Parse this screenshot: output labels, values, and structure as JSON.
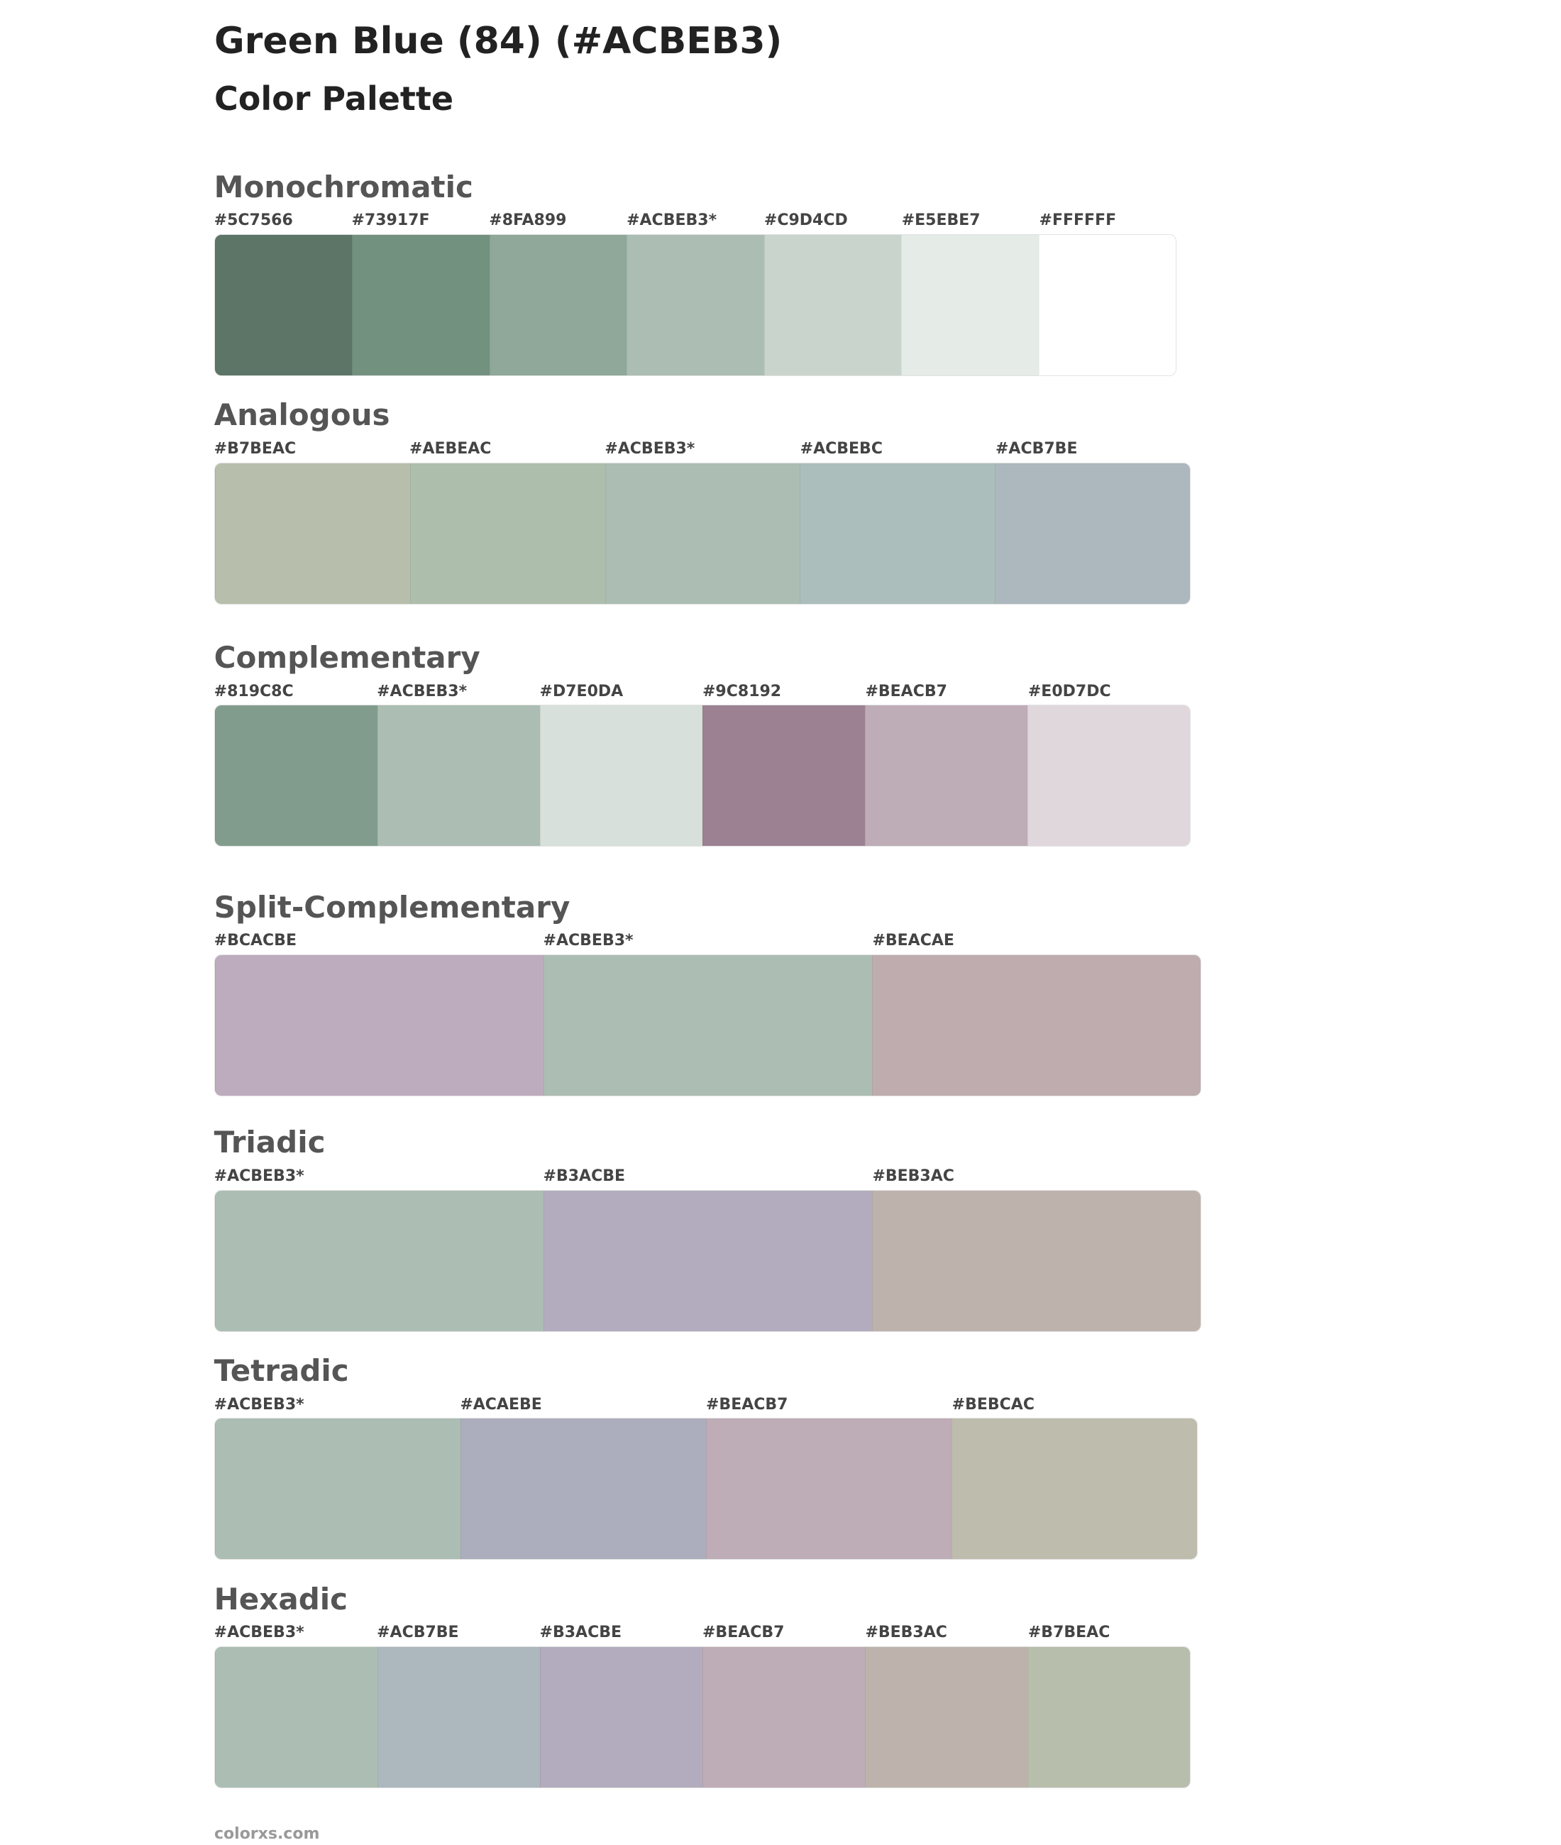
{
  "header": {
    "title": "Green Blue (84) (#ACBEB3)",
    "subtitle": "Color Palette"
  },
  "sections": [
    {
      "name": "Monochromatic",
      "swatches": [
        {
          "label": "#5C7566",
          "color": "#5C7566"
        },
        {
          "label": "#73917F",
          "color": "#73917F"
        },
        {
          "label": "#8FA899",
          "color": "#8FA899"
        },
        {
          "label": "#ACBEB3*",
          "color": "#ACBEB3"
        },
        {
          "label": "#C9D4CD",
          "color": "#C9D4CD"
        },
        {
          "label": "#E5EBE7",
          "color": "#E5EBE7"
        },
        {
          "label": "#FFFFFF",
          "color": "#FFFFFF"
        }
      ]
    },
    {
      "name": "Analogous",
      "swatches": [
        {
          "label": "#B7BEAC",
          "color": "#B7BEAC"
        },
        {
          "label": "#AEBEAC",
          "color": "#AEBEAC"
        },
        {
          "label": "#ACBEB3*",
          "color": "#ACBEB3"
        },
        {
          "label": "#ACBEBC",
          "color": "#ACBEBC"
        },
        {
          "label": "#ACB7BE",
          "color": "#ACB7BE"
        }
      ]
    },
    {
      "name": "Complementary",
      "swatches": [
        {
          "label": "#819C8C",
          "color": "#819C8C"
        },
        {
          "label": "#ACBEB3*",
          "color": "#ACBEB3"
        },
        {
          "label": "#D7E0DA",
          "color": "#D7E0DA"
        },
        {
          "label": "#9C8192",
          "color": "#9C8192"
        },
        {
          "label": "#BEACB7",
          "color": "#BEACB7"
        },
        {
          "label": "#E0D7DC",
          "color": "#E0D7DC"
        }
      ]
    },
    {
      "name": "Split-Complementary",
      "swatches": [
        {
          "label": "#BCACBE",
          "color": "#BCACBE"
        },
        {
          "label": "#ACBEB3*",
          "color": "#ACBEB3"
        },
        {
          "label": "#BEACAE",
          "color": "#BEACAE"
        }
      ]
    },
    {
      "name": "Triadic",
      "swatches": [
        {
          "label": "#ACBEB3*",
          "color": "#ACBEB3"
        },
        {
          "label": "#B3ACBE",
          "color": "#B3ACBE"
        },
        {
          "label": "#BEB3AC",
          "color": "#BEB3AC"
        }
      ]
    },
    {
      "name": "Tetradic",
      "swatches": [
        {
          "label": "#ACBEB3*",
          "color": "#ACBEB3"
        },
        {
          "label": "#ACAEBE",
          "color": "#ACAEBE"
        },
        {
          "label": "#BEACB7",
          "color": "#BEACB7"
        },
        {
          "label": "#BEBCAC",
          "color": "#BEBCAC"
        }
      ]
    },
    {
      "name": "Hexadic",
      "swatches": [
        {
          "label": "#ACBEB3*",
          "color": "#ACBEB3"
        },
        {
          "label": "#ACB7BE",
          "color": "#ACB7BE"
        },
        {
          "label": "#B3ACBE",
          "color": "#B3ACBE"
        },
        {
          "label": "#BEACB7",
          "color": "#BEACB7"
        },
        {
          "label": "#BEB3AC",
          "color": "#BEB3AC"
        },
        {
          "label": "#B7BEAC",
          "color": "#B7BEAC"
        }
      ]
    }
  ],
  "footer": {
    "text": "colorxs.com"
  }
}
